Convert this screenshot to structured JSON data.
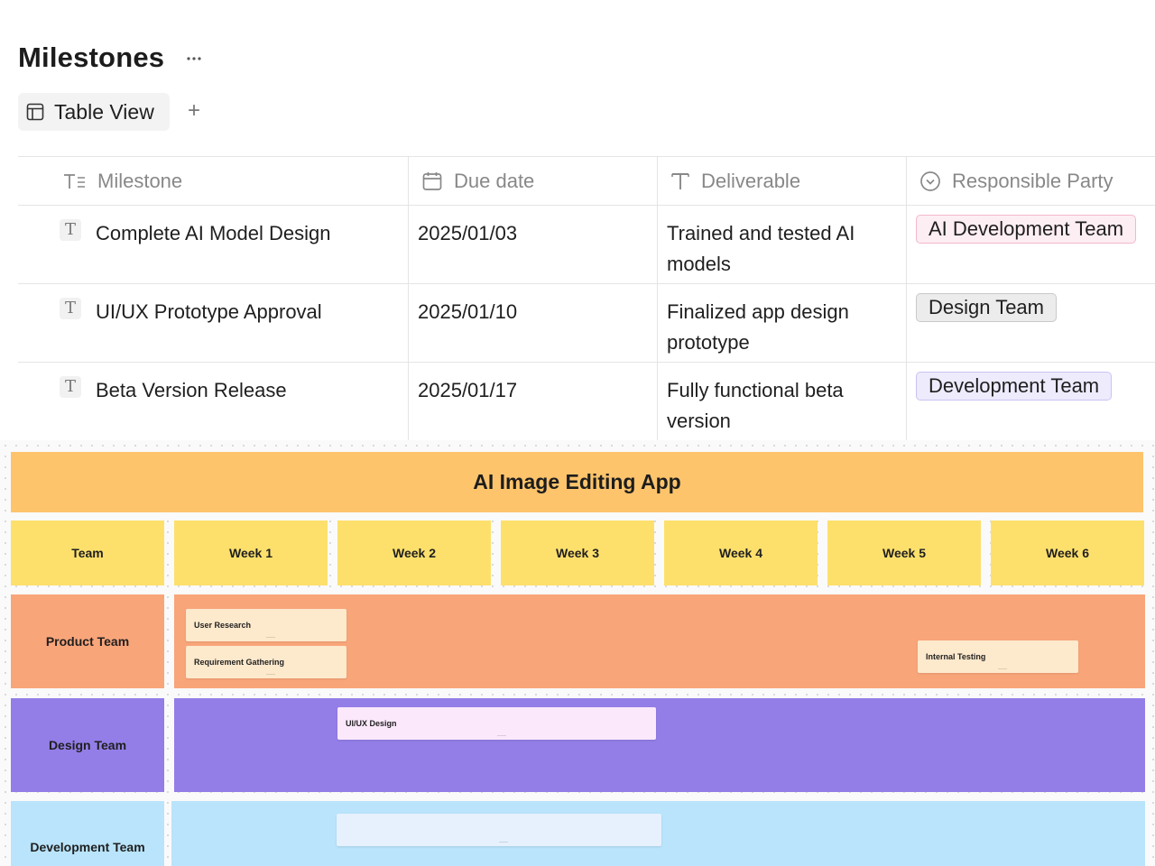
{
  "header": {
    "title": "Milestones",
    "more_icon": "more-horizontal-icon",
    "view_tab_label": "Table View",
    "add_view_label": "+"
  },
  "table": {
    "columns": [
      {
        "label": "Milestone",
        "icon": "text-title-icon"
      },
      {
        "label": "Due date",
        "icon": "calendar-icon"
      },
      {
        "label": "Deliverable",
        "icon": "text-icon"
      },
      {
        "label": "Responsible Party",
        "icon": "select-icon"
      }
    ],
    "rows": [
      {
        "row_icon": "T",
        "milestone": "Complete AI Model Design",
        "due_date": "2025/01/03",
        "deliverable": "Trained and tested AI models",
        "party": "AI Development Team"
      },
      {
        "row_icon": "T",
        "milestone": "UI/UX Prototype Approval",
        "due_date": "2025/01/10",
        "deliverable": "Finalized app design prototype",
        "party": "Design Team"
      },
      {
        "row_icon": "T",
        "milestone": "Beta Version Release",
        "due_date": "2025/01/17",
        "deliverable": "Fully functional beta version",
        "party": "Development Team"
      }
    ],
    "pill_colors": [
      {
        "bg": "#fdeef3",
        "border": "#f5b7cc"
      },
      {
        "bg": "#ececec",
        "border": "#c9c9c9"
      },
      {
        "bg": "#edebfc",
        "border": "#c9c3f3"
      }
    ]
  },
  "board": {
    "title": "AI Image Editing App",
    "header_cells": [
      "Team",
      "Week 1",
      "Week 2",
      "Week 3",
      "Week 4",
      "Week 5",
      "Week 6"
    ],
    "teams": [
      {
        "name": "Product Team",
        "color": "#f9a57a",
        "cards": [
          "User Research",
          "Requirement Gathering",
          "Internal Testing"
        ]
      },
      {
        "name": "Design Team",
        "color": "#937ee8",
        "cards": [
          "UI/UX Design"
        ]
      },
      {
        "name": "Development Team",
        "color": "#b9e4fb",
        "cards": [
          ""
        ]
      }
    ],
    "colors": {
      "title_bg": "#fdc46c",
      "header_bg": "#fde06c",
      "product_card": "#fde9cc",
      "design_card": "#fbe8fb",
      "dev_card": "#e6f1fd"
    }
  }
}
